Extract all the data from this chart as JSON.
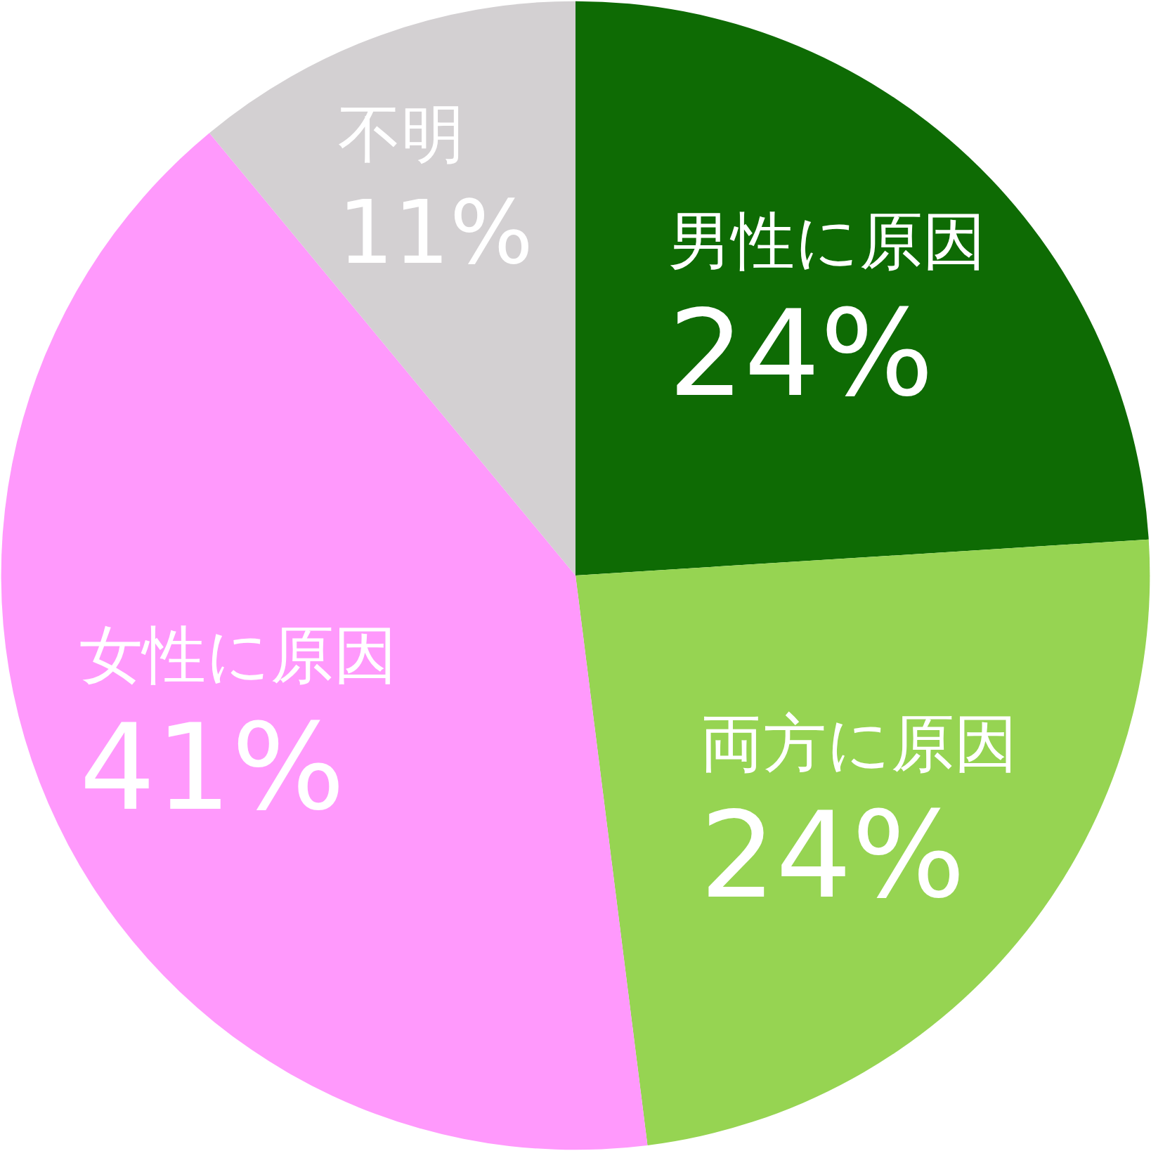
{
  "chart_data": {
    "type": "pie",
    "categories": [
      "男性に原因",
      "両方に原因",
      "女性に原因",
      "不明"
    ],
    "values": [
      24,
      24,
      41,
      11
    ],
    "value_labels": [
      "24%",
      "24%",
      "41%",
      "11%"
    ],
    "colors": [
      "#0e6b04",
      "#96d452",
      "#ff99fc",
      "#d3d0d2"
    ],
    "legend": false
  }
}
